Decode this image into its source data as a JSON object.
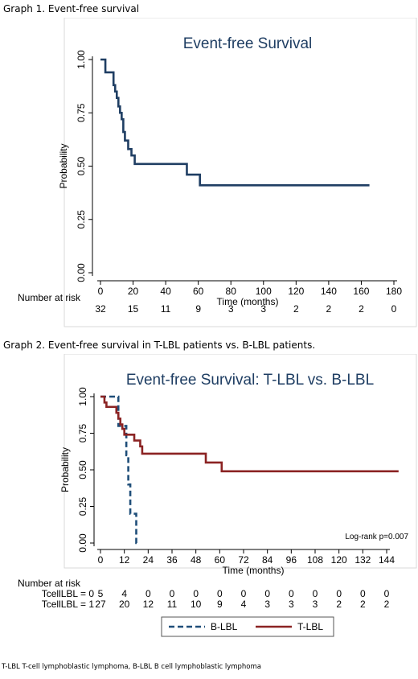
{
  "graph1_caption": "Graph 1. Event-free survival",
  "graph2_caption": "Graph 2. Event-free survival in T-LBL patients vs. B-LBL patients.",
  "footnote": "T-LBL T-cell lymphoblastic lymphoma, B-LBL B cell lymphoblastic lymphoma",
  "chart_data": [
    {
      "type": "line",
      "subtype": "kaplan-meier step",
      "title": "Event-free Survival",
      "xlabel": "Time (months)",
      "ylabel": "Probability",
      "xlim": [
        0,
        180
      ],
      "ylim": [
        0,
        1
      ],
      "x_ticks": [
        0,
        20,
        40,
        60,
        80,
        100,
        120,
        140,
        160,
        180
      ],
      "y_ticks": [
        "0.00",
        "0.25",
        "0.50",
        "0.75",
        "1.00"
      ],
      "grid": false,
      "series": [
        {
          "color": "#1f3e63",
          "x": [
            0,
            2,
            3,
            7,
            8,
            9,
            10,
            11,
            12,
            13,
            14,
            15,
            16,
            17,
            18,
            19,
            20,
            21,
            52,
            53,
            60,
            61,
            165
          ],
          "y": [
            1.0,
            1.0,
            0.94,
            0.94,
            0.88,
            0.85,
            0.82,
            0.78,
            0.75,
            0.72,
            0.66,
            0.62,
            0.62,
            0.58,
            0.58,
            0.55,
            0.55,
            0.51,
            0.51,
            0.46,
            0.46,
            0.41,
            0.41
          ]
        }
      ],
      "risk_table": {
        "label": "Number at risk",
        "times": [
          0,
          20,
          40,
          60,
          80,
          100,
          120,
          140,
          160,
          180
        ],
        "values": [
          "32",
          "15",
          "11",
          "9",
          "3",
          "3",
          "2",
          "2",
          "2",
          "0"
        ]
      }
    },
    {
      "type": "line",
      "subtype": "kaplan-meier step",
      "title": "Event-free Survival: T-LBL vs. B-LBL",
      "xlabel": "Time (months)",
      "ylabel": "Probability",
      "xlim": [
        0,
        144
      ],
      "ylim": [
        0,
        1
      ],
      "x_ticks": [
        0,
        12,
        24,
        36,
        48,
        60,
        72,
        84,
        96,
        108,
        120,
        132,
        144
      ],
      "y_ticks": [
        "0.00",
        "0.25",
        "0.50",
        "0.75",
        "1.00"
      ],
      "grid": false,
      "annotation": "Log-rank p=0.007",
      "series": [
        {
          "name": "B-LBL",
          "color": "#1f4e79",
          "dash": true,
          "x": [
            0,
            8,
            9,
            10,
            11,
            12,
            13,
            14,
            15,
            17,
            18,
            18.5
          ],
          "y": [
            1.0,
            1.0,
            0.8,
            0.8,
            0.8,
            0.8,
            0.6,
            0.4,
            0.2,
            0.2,
            0.0,
            0.0
          ]
        },
        {
          "name": "T-LBL",
          "color": "#8b2323",
          "dash": false,
          "x": [
            0,
            1,
            2,
            3,
            7,
            8,
            9,
            10,
            11,
            12,
            13,
            15,
            17,
            19,
            20,
            21,
            52,
            53,
            60,
            61,
            150
          ],
          "y": [
            1.0,
            1.0,
            0.96,
            0.93,
            0.93,
            0.89,
            0.85,
            0.81,
            0.78,
            0.74,
            0.74,
            0.74,
            0.7,
            0.7,
            0.66,
            0.61,
            0.61,
            0.55,
            0.55,
            0.49,
            0.49
          ]
        }
      ],
      "legend": {
        "placement": "bottom",
        "items": [
          "B-LBL",
          "T-LBL"
        ]
      },
      "risk_table": {
        "label": "Number at risk",
        "times": [
          0,
          12,
          24,
          36,
          48,
          60,
          72,
          84,
          96,
          108,
          120,
          132,
          144
        ],
        "rows": [
          {
            "label": "TcellLBL = 0",
            "values": [
              "5",
              "4",
              "0",
              "0",
              "0",
              "0",
              "0",
              "0",
              "0",
              "0",
              "0",
              "0",
              "0"
            ]
          },
          {
            "label": "TcellLBL = 1",
            "values": [
              "27",
              "20",
              "12",
              "11",
              "10",
              "9",
              "4",
              "3",
              "3",
              "3",
              "2",
              "2",
              "2"
            ]
          }
        ]
      }
    }
  ]
}
